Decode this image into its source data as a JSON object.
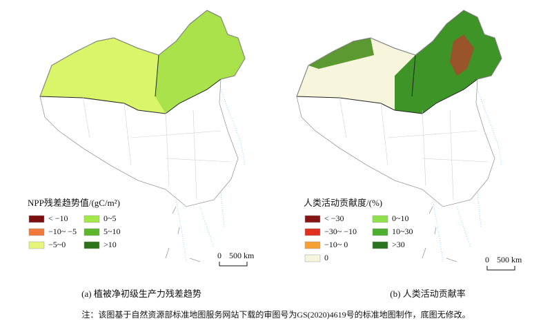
{
  "panels": [
    {
      "legend": {
        "title": "NPP残差趋势值/(gC/m²)",
        "items": [
          {
            "label": "< −10",
            "color": "#7a0f0f"
          },
          {
            "label": "−10~ −5",
            "color": "#f07a3a"
          },
          {
            "label": "−5~0",
            "color": "#e8f57c"
          },
          {
            "label": "0~5",
            "color": "#a6e84a"
          },
          {
            "label": "5~10",
            "color": "#5db52c"
          },
          {
            "label": ">10",
            "color": "#2b7418"
          }
        ]
      },
      "scale": {
        "start": "0",
        "end": "500 km"
      },
      "caption": "(a) 植被净初级生产力残差趋势"
    },
    {
      "legend": {
        "title": "人类活动贡献度/(%)",
        "items": [
          {
            "label": "< −30",
            "color": "#861616"
          },
          {
            "label": "−30~ −10",
            "color": "#e0301f"
          },
          {
            "label": "−10~ 0",
            "color": "#f5a030"
          },
          {
            "label": "0",
            "color": "#f7f5dc"
          },
          {
            "label": "0~10",
            "color": "#8fe04c"
          },
          {
            "label": "10~30",
            "color": "#4caf2e"
          },
          {
            "label": ">30",
            "color": "#2a7420"
          }
        ]
      },
      "scale": {
        "start": "0",
        "end": "500 km"
      },
      "caption": "(b) 人类活动贡献率"
    }
  ],
  "note": "注：该图基于自然资源部标准地图服务网站下载的审图号为GS(2020)4619号的标准地图制作，底图无修改。"
}
